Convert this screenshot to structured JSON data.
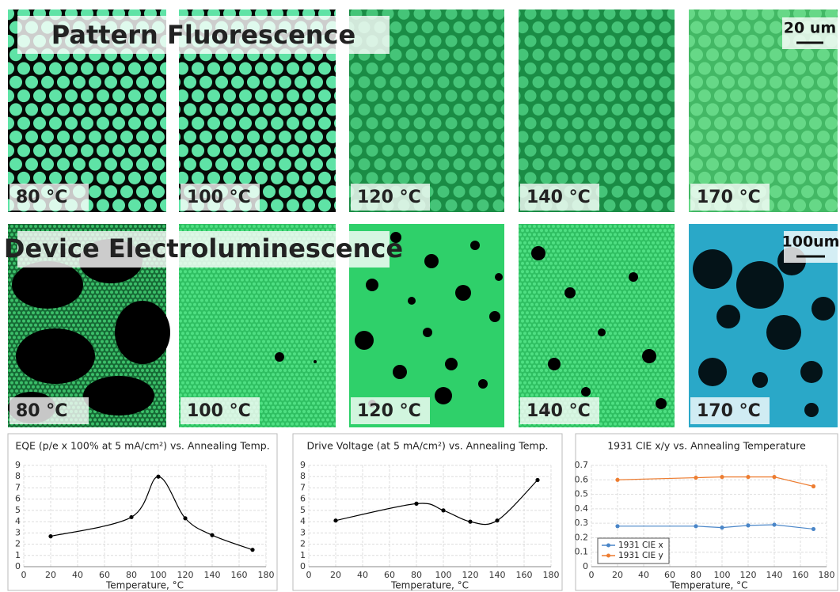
{
  "fluorescence": {
    "title": "Pattern Fluorescence",
    "scale_bar": "20 um",
    "labels": [
      "80 °C",
      "100 °C",
      "120 °C",
      "140 °C",
      "170 °C"
    ]
  },
  "electroluminescence": {
    "title": "Device Electroluminescence",
    "scale_bar": "100um",
    "labels": [
      "80 °C",
      "100 °C",
      "120 °C",
      "140 °C",
      "170 °C"
    ]
  },
  "chart_data": [
    {
      "type": "line",
      "title": "EQE (p/e x 100% at 5 mA/cm²) vs. Annealing Temp.",
      "x_label": "Temperature, °C",
      "x": [
        20,
        80,
        100,
        120,
        140,
        170
      ],
      "values": [
        2.7,
        4.4,
        8.0,
        4.3,
        2.8,
        1.5
      ],
      "color": "#000000",
      "smooth": true,
      "xlim": [
        0,
        180
      ],
      "xticks": [
        0,
        20,
        40,
        60,
        80,
        100,
        120,
        140,
        160,
        180
      ],
      "ylim": [
        0,
        9
      ],
      "yticks": [
        0,
        1,
        2,
        3,
        4,
        5,
        6,
        7,
        8,
        9
      ],
      "grid": true
    },
    {
      "type": "line",
      "title": "Drive Voltage (at 5 mA/cm²) vs. Annealing Temp.",
      "x_label": "Temperature, °C",
      "x": [
        20,
        80,
        100,
        120,
        140,
        170
      ],
      "values": [
        4.1,
        5.6,
        5.0,
        4.0,
        4.1,
        7.7
      ],
      "color": "#000000",
      "smooth": true,
      "xlim": [
        0,
        180
      ],
      "xticks": [
        0,
        20,
        40,
        60,
        80,
        100,
        120,
        140,
        160,
        180
      ],
      "ylim": [
        0,
        9
      ],
      "yticks": [
        0,
        1,
        2,
        3,
        4,
        5,
        6,
        7,
        8,
        9
      ],
      "grid": true
    },
    {
      "type": "line",
      "title": "1931 CIE x/y vs. Annealing Temperature",
      "x_label": "Temperature, °C",
      "x": [
        20,
        80,
        100,
        120,
        140,
        170
      ],
      "smooth": false,
      "legend": "lower left",
      "series": [
        {
          "name": "1931 CIE x",
          "color": "#4a86c8",
          "values": [
            0.28,
            0.28,
            0.27,
            0.285,
            0.29,
            0.26
          ]
        },
        {
          "name": "1931 CIE y",
          "color": "#ed7d31",
          "values": [
            0.6,
            0.615,
            0.62,
            0.62,
            0.62,
            0.555
          ]
        }
      ],
      "xlim": [
        0,
        180
      ],
      "xticks": [
        0,
        20,
        40,
        60,
        80,
        100,
        120,
        140,
        160,
        180
      ],
      "ylim": [
        0,
        0.7
      ],
      "yticks": [
        0,
        0.1,
        0.2,
        0.3,
        0.4,
        0.5,
        0.6,
        0.7
      ],
      "grid": true
    }
  ]
}
